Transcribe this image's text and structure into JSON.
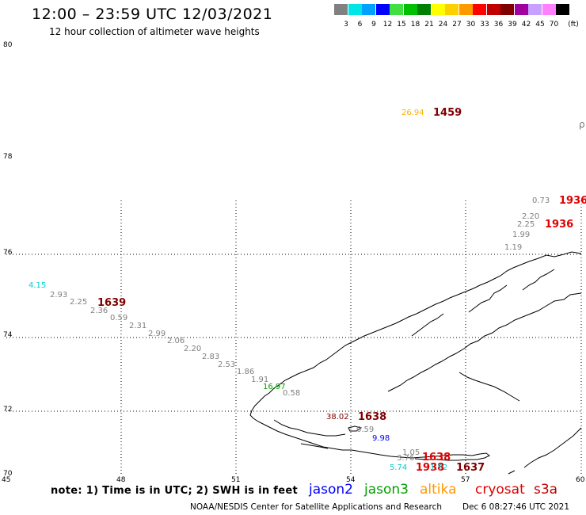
{
  "header": {
    "title": "12:00 – 23:59 UTC 12/03/2021",
    "subtitle": "12 hour collection of altimeter wave heights"
  },
  "legend": {
    "unit": "(ft)",
    "swatches": [
      {
        "color": "#808080",
        "label": "3"
      },
      {
        "color": "#00e6e6",
        "label": "6"
      },
      {
        "color": "#00a0ff",
        "label": "9"
      },
      {
        "color": "#0000ff",
        "label": "12"
      },
      {
        "color": "#40e040",
        "label": "15"
      },
      {
        "color": "#00c000",
        "label": "18"
      },
      {
        "color": "#008000",
        "label": "21"
      },
      {
        "color": "#ffff00",
        "label": "24"
      },
      {
        "color": "#ffd000",
        "label": "27"
      },
      {
        "color": "#ff9900",
        "label": "30"
      },
      {
        "color": "#ff0000",
        "label": "33"
      },
      {
        "color": "#c00000",
        "label": "36"
      },
      {
        "color": "#800000",
        "label": "39"
      },
      {
        "color": "#a000a0",
        "label": "42"
      },
      {
        "color": "#c8a0ff",
        "label": "45"
      },
      {
        "color": "#ff80ff",
        "label": "70"
      },
      {
        "color": "#000000",
        "label": ""
      }
    ]
  },
  "map": {
    "lat_labels": [
      "80",
      "78",
      "76",
      "74",
      "72",
      "70"
    ],
    "lon_labels": [
      "45",
      "48",
      "51",
      "54",
      "57",
      "60"
    ],
    "corner_symbol": "ρ",
    "observations": [
      {
        "text": "26.94",
        "color": "#ffb000"
      },
      {
        "text": "1459",
        "color": "#800000"
      },
      {
        "text": "0.73",
        "color": "#808080"
      },
      {
        "text": "1936",
        "color": "#e00000"
      },
      {
        "text": "2.20",
        "color": "#808080"
      },
      {
        "text": "2.25",
        "color": "#808080"
      },
      {
        "text": "1936",
        "color": "#e00000"
      },
      {
        "text": "1.99",
        "color": "#808080"
      },
      {
        "text": "1.19",
        "color": "#808080"
      },
      {
        "text": "4.15",
        "color": "#00d0d0"
      },
      {
        "text": "2.93",
        "color": "#808080"
      },
      {
        "text": "2.25",
        "color": "#808080"
      },
      {
        "text": "1639",
        "color": "#800000"
      },
      {
        "text": "2.36",
        "color": "#808080"
      },
      {
        "text": "0.59",
        "color": "#808080"
      },
      {
        "text": "2.31",
        "color": "#808080"
      },
      {
        "text": "2.99",
        "color": "#808080"
      },
      {
        "text": "2.06",
        "color": "#808080"
      },
      {
        "text": "2.20",
        "color": "#808080"
      },
      {
        "text": "2.83",
        "color": "#808080"
      },
      {
        "text": "2.53",
        "color": "#808080"
      },
      {
        "text": "1.86",
        "color": "#808080"
      },
      {
        "text": "1.91",
        "color": "#808080"
      },
      {
        "text": "16.97",
        "color": "#00a000"
      },
      {
        "text": "0.58",
        "color": "#808080"
      },
      {
        "text": "38.02",
        "color": "#800000"
      },
      {
        "text": "1638",
        "color": "#800000"
      },
      {
        "text": "0.59",
        "color": "#808080"
      },
      {
        "text": "9.98",
        "color": "#0000ff"
      },
      {
        "text": "1.05",
        "color": "#808080"
      },
      {
        "text": "3.76",
        "color": "#808080"
      },
      {
        "text": "1638",
        "color": "#e00000"
      },
      {
        "text": "5.74",
        "color": "#00d0d0"
      },
      {
        "text": "1938",
        "color": "#e00000"
      },
      {
        "text": "1.52",
        "color": "#00d0d0"
      },
      {
        "text": "1637",
        "color": "#800000"
      }
    ]
  },
  "footer": {
    "note": "note:  1) Time is in UTC;  2) SWH is in feet",
    "satellites": [
      {
        "name": "jason2",
        "color": "#0000ff"
      },
      {
        "name": "jason3",
        "color": "#00a000"
      },
      {
        "name": "altika",
        "color": "#ff9900"
      },
      {
        "name": "cryosat",
        "color": "#e00000"
      },
      {
        "name": "s3a",
        "color": "#c00000"
      }
    ],
    "credit": "NOAA/NESDIS Center for Satellite Applications and Research",
    "timestamp": "Dec  6 08:27:46 UTC 2021"
  }
}
